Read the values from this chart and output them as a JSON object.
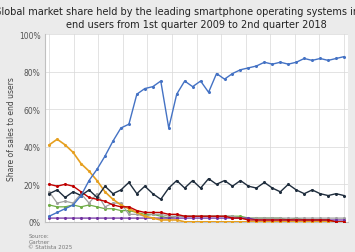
{
  "title": "Global market share held by the leading smartphone operating systems in sales to\nend users from 1st quarter 2009 to 2nd quarter 2018",
  "ylabel": "Share of sales to end users",
  "source_text": "Source:\nGartner\n© Statista 2025",
  "ytick_labels": [
    "0%",
    "20%",
    "40%",
    "60%",
    "80%",
    "100%"
  ],
  "ytick_values": [
    0,
    20,
    40,
    60,
    80,
    100
  ],
  "n_points": 38,
  "android": [
    3,
    5,
    7,
    9,
    14,
    22,
    28,
    35,
    43,
    50,
    52,
    68,
    71,
    72,
    75,
    50,
    68,
    75,
    72,
    75,
    69,
    79,
    76,
    79,
    81,
    82,
    83,
    85,
    84,
    85,
    84,
    85,
    87,
    86,
    87,
    86,
    87,
    88
  ],
  "ios": [
    11,
    14,
    13,
    16,
    16,
    19,
    15,
    23,
    19,
    17,
    23,
    15,
    19,
    17,
    12,
    20,
    20,
    18,
    20,
    18,
    21,
    19,
    19,
    18,
    19,
    18,
    18,
    17,
    17,
    16,
    17,
    16,
    15,
    15,
    14,
    14,
    13,
    12
  ],
  "symbian": [
    41,
    44,
    41,
    37,
    31,
    27,
    22,
    16,
    12,
    9,
    7,
    5,
    3,
    2,
    1,
    1,
    1,
    0,
    0,
    0,
    0,
    0,
    0,
    0,
    0,
    0,
    0,
    0,
    0,
    0,
    0,
    0,
    0,
    0,
    0,
    0,
    0,
    0
  ],
  "blackberry": [
    20,
    19,
    20,
    19,
    16,
    13,
    12,
    11,
    9,
    8,
    8,
    6,
    5,
    5,
    5,
    4,
    4,
    3,
    3,
    3,
    3,
    3,
    3,
    2,
    2,
    1,
    1,
    1,
    1,
    1,
    1,
    1,
    1,
    1,
    1,
    1,
    0,
    0
  ],
  "windows": [
    9,
    8,
    8,
    9,
    8,
    9,
    8,
    7,
    7,
    6,
    6,
    5,
    4,
    4,
    3,
    2,
    3,
    3,
    3,
    3,
    3,
    3,
    3,
    3,
    3,
    2,
    2,
    2,
    2,
    2,
    1,
    2,
    1,
    1,
    1,
    1,
    0,
    0
  ],
  "others_grey": [
    16,
    10,
    11,
    10,
    15,
    10,
    15,
    8,
    10,
    10,
    4,
    4,
    3,
    4,
    4,
    3,
    3,
    3,
    3,
    3,
    3,
    3,
    3,
    3,
    2,
    2,
    2,
    2,
    2,
    2,
    2,
    2,
    2,
    2,
    2,
    2,
    2,
    2
  ],
  "purple": [
    2,
    2,
    2,
    2,
    2,
    2,
    2,
    2,
    2,
    2,
    2,
    2,
    2,
    2,
    2,
    2,
    2,
    2,
    2,
    2,
    2,
    2,
    2,
    2,
    2,
    2,
    1,
    1,
    1,
    1,
    1,
    1,
    1,
    1,
    1,
    1,
    1,
    1
  ],
  "ios_zigzag": [
    15,
    17,
    13,
    16,
    14,
    17,
    13,
    19,
    15,
    17,
    21,
    15,
    19,
    15,
    12,
    18,
    22,
    18,
    22,
    18,
    23,
    20,
    22,
    19,
    22,
    19,
    18,
    21,
    18,
    16,
    20,
    17,
    15,
    17,
    15,
    14,
    15,
    14
  ],
  "bg_color": "#ebebeb",
  "plot_bg": "#ffffff",
  "title_fontsize": 7.0,
  "axis_label_fontsize": 5.5,
  "tick_fontsize": 5.5
}
